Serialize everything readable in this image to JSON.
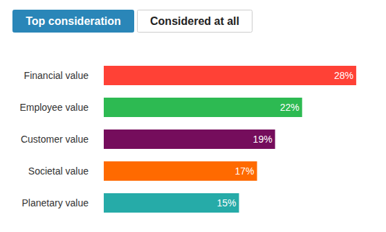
{
  "chart_data": {
    "type": "bar",
    "orientation": "horizontal",
    "annotations": [
      "Top consideration",
      "Considered at all"
    ],
    "categories": [
      "Financial value",
      "Employee value",
      "Customer value",
      "Societal value",
      "Planetary value"
    ],
    "values": [
      28,
      22,
      19,
      17,
      15
    ],
    "value_labels": [
      "28%",
      "22%",
      "19%",
      "17%",
      "15%"
    ],
    "colors": [
      "#ff4136",
      "#2dba52",
      "#750d5c",
      "#ff6a00",
      "#26aba8"
    ],
    "xlim": [
      0,
      30
    ],
    "data_labels": true,
    "tick_labels": "y"
  }
}
